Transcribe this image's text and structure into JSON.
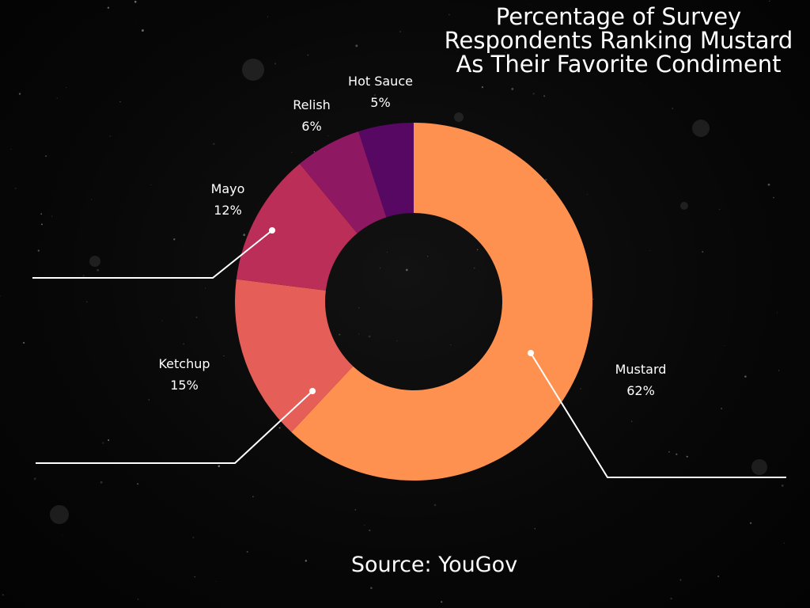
{
  "chart_data": {
    "type": "pie",
    "donut": true,
    "title": "Percentage of Survey Respondents Ranking Mustard As Their Favorite Condiment",
    "categories": [
      "Mustard",
      "Ketchup",
      "Mayo",
      "Relish",
      "Hot Sauce"
    ],
    "values": [
      62,
      15,
      12,
      6,
      5
    ],
    "value_labels": [
      "62%",
      "15%",
      "12%",
      "6%",
      "5%"
    ],
    "colors": [
      "#FF9150",
      "#E65E58",
      "#BB2E58",
      "#8F1863",
      "#570863"
    ],
    "source": "Source: YouGov",
    "background": "#060606",
    "label_color": "#ffffff",
    "legend": "none",
    "grid": false
  }
}
